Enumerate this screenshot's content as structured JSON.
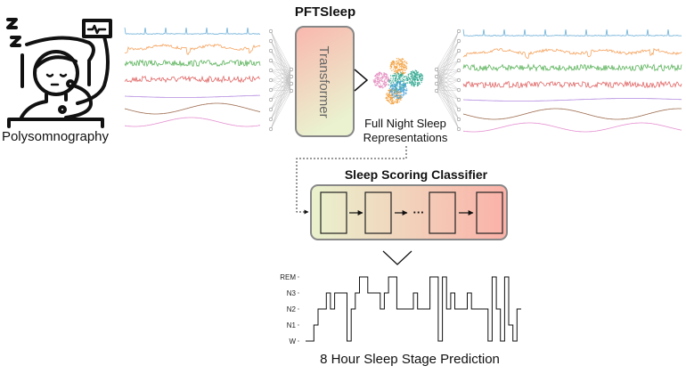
{
  "person_label": "Polysomnography",
  "model_title": "PFTSleep",
  "transformer_label": "Transformer",
  "representation_label": [
    "Full Night Sleep",
    "Representations"
  ],
  "classifier_title": "Sleep Scoring Classifier",
  "classifier_ellipsis": "···",
  "prediction_title": "8 Hour Sleep Stage Prediction",
  "colors": {
    "signals": [
      "#6aaed6",
      "#f5a25d",
      "#5bb35b",
      "#e06666",
      "#b48be0",
      "#9c6b4e",
      "#e58fd0"
    ],
    "clusters": [
      "#e58fbf",
      "#f29d38",
      "#2ca58d",
      "#4aa3d9"
    ],
    "transformer_gradient": [
      "#f9b7ad",
      "#eaf2cf"
    ],
    "classifier_gradient": [
      "#e9f2cd",
      "#fbb1a8"
    ]
  },
  "chart_data": {
    "type": "line",
    "y_tick_labels": [
      "W",
      "N1",
      "N2",
      "N3",
      "REM"
    ],
    "stages_sequence": [
      "W",
      "W",
      "N1",
      "N2",
      "N2",
      "N3",
      "N2",
      "N3",
      "N3",
      "N3",
      "W",
      "N2",
      "N3",
      "REM",
      "REM",
      "N3",
      "N3",
      "N3",
      "N2",
      "N3",
      "REM",
      "REM",
      "N2",
      "N2",
      "N2",
      "N2",
      "N3",
      "N2",
      "N2",
      "N2",
      "REM",
      "REM",
      "W",
      "REM",
      "N2",
      "N3",
      "N2",
      "N2",
      "N2",
      "N3",
      "N2",
      "N2",
      "N2",
      "N2",
      "W",
      "REM",
      "N2",
      "W",
      "REM",
      "N1",
      "W",
      "N2"
    ],
    "title": "8 Hour Sleep Stage Prediction"
  }
}
